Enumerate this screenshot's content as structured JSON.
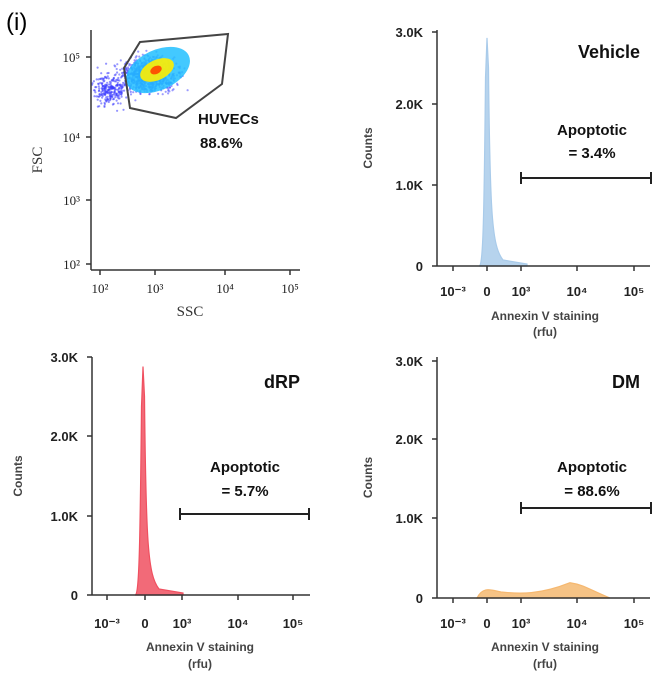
{
  "panel_label": "(i)",
  "chart_data": [
    {
      "type": "scatter",
      "xlabel": "SSC",
      "ylabel": "FSC",
      "x_scale": "log",
      "y_scale": "log",
      "x_ticks": [
        "10²",
        "10³",
        "10⁴",
        "10⁵"
      ],
      "y_ticks": [
        "10⁵",
        "10⁴",
        "10³",
        "10²"
      ],
      "gate_label": "HUVECs",
      "gate_value": "88.6%",
      "colors": {
        "low": "#3a3aff",
        "mid": "#22c0ff",
        "high": "#ffee00",
        "core": "#ff4400"
      }
    },
    {
      "type": "area",
      "title": "Vehicle",
      "xlabel": "Annexin V staining",
      "xlabel2": "(rfu)",
      "ylabel": "Counts",
      "y_ticks": [
        "3.0K",
        "2.0K",
        "1.0K",
        "0"
      ],
      "x_ticks": [
        "10⁻³",
        "0",
        "10³",
        "10⁴",
        "10⁵"
      ],
      "ylim": [
        0,
        3000
      ],
      "peak_count": 2900,
      "gate_label": "Apoptotic",
      "gate_value": "= 3.4%",
      "color": "#a9cbea"
    },
    {
      "type": "area",
      "title": "dRP",
      "xlabel": "Annexin V staining",
      "xlabel2": "(rfu)",
      "ylabel": "Counts",
      "y_ticks": [
        "3.0K",
        "2.0K",
        "1.0K",
        "0"
      ],
      "x_ticks": [
        "10⁻³",
        "0",
        "10³",
        "10⁴",
        "10⁵"
      ],
      "ylim": [
        0,
        3000
      ],
      "peak_count": 2880,
      "gate_label": "Apoptotic",
      "gate_value": "= 5.7%",
      "color": "#f05060"
    },
    {
      "type": "area",
      "title": "DM",
      "xlabel": "Annexin V staining",
      "xlabel2": "(rfu)",
      "ylabel": "Counts",
      "y_ticks": [
        "3.0K",
        "2.0K",
        "1.0K",
        "0"
      ],
      "x_ticks": [
        "10⁻³",
        "0",
        "10³",
        "10⁴",
        "10⁵"
      ],
      "ylim": [
        0,
        3000
      ],
      "peak_count": 190,
      "gate_label": "Apoptotic",
      "gate_value": "= 88.6%",
      "color": "#f5b870"
    }
  ]
}
